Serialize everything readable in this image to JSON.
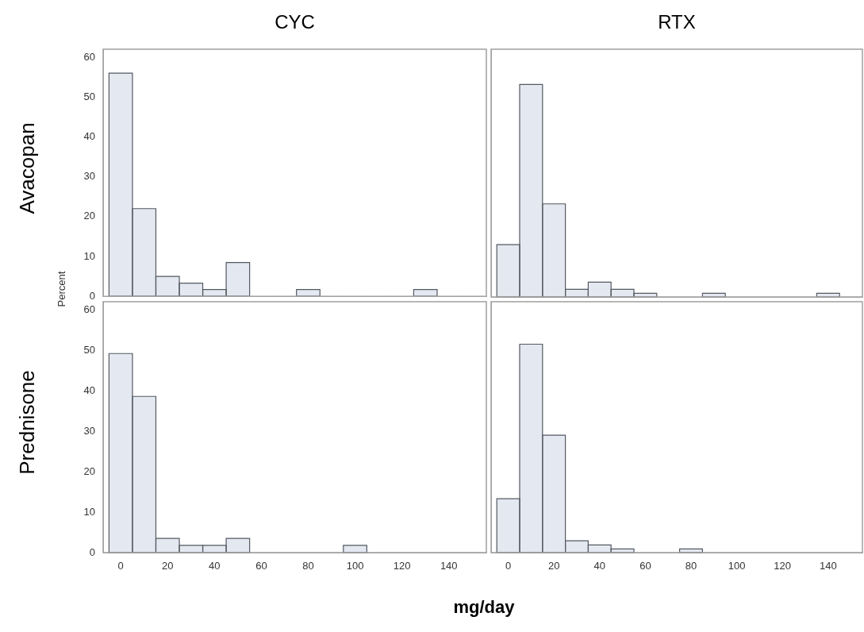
{
  "chart_data": [
    {
      "type": "histogram",
      "title": "CYC",
      "ylabel": "Avacopan",
      "annotations": [
        "Percent"
      ],
      "bins": [
        -5,
        5,
        15,
        25,
        35,
        45,
        55,
        65,
        75,
        85,
        95,
        105,
        115,
        125,
        135,
        145,
        155
      ],
      "values": [
        56,
        22,
        5,
        3.3,
        1.7,
        8.5,
        0,
        0,
        1.7,
        0,
        0,
        0,
        0,
        1.7,
        0,
        0
      ],
      "color": "#e3e8f1",
      "xlim": [
        -7.5,
        156
      ],
      "xticks": [
        0,
        20,
        40,
        60,
        80,
        100,
        120,
        140
      ],
      "ylim": [
        0,
        62
      ],
      "yticks": [
        0,
        10,
        20,
        30,
        40,
        50,
        60
      ],
      "tick_labels": "y"
    },
    {
      "type": "histogram",
      "title": "RTX",
      "bins": [
        -5,
        5,
        15,
        25,
        35,
        45,
        55,
        65,
        75,
        85,
        95,
        105,
        115,
        125,
        135,
        145,
        155
      ],
      "values": [
        13.1,
        53.2,
        23.3,
        1.9,
        3.7,
        1.9,
        0.9,
        0,
        0,
        0.9,
        0,
        0,
        0,
        0,
        0.9,
        0
      ],
      "color": "#e3e8f1",
      "xlim": [
        -7.5,
        155
      ],
      "xticks": [
        0,
        20,
        40,
        60,
        80,
        100,
        120,
        140
      ],
      "ylim": [
        0,
        62
      ],
      "yticks": [
        0,
        10,
        20,
        30,
        40,
        50,
        60
      ],
      "tick_labels": false
    },
    {
      "type": "histogram",
      "ylabel": "Prednisone",
      "xlabel": "mg/day",
      "bins": [
        -5,
        5,
        15,
        25,
        35,
        45,
        55,
        65,
        75,
        85,
        95,
        105,
        115,
        125,
        135,
        145,
        155
      ],
      "values": [
        49.2,
        38.6,
        3.5,
        1.8,
        1.8,
        3.5,
        0,
        0,
        0,
        0,
        1.8,
        0,
        0,
        0,
        0,
        0
      ],
      "color": "#e3e8f1",
      "xlim": [
        -7.5,
        156
      ],
      "xticks": [
        0,
        20,
        40,
        60,
        80,
        100,
        120,
        140
      ],
      "ylim": [
        0,
        62
      ],
      "yticks": [
        0,
        10,
        20,
        30,
        40,
        50,
        60
      ]
    },
    {
      "type": "histogram",
      "bins": [
        -5,
        5,
        15,
        25,
        35,
        45,
        55,
        65,
        75,
        85,
        95,
        105,
        115,
        125,
        135,
        145,
        155
      ],
      "values": [
        13.3,
        51.5,
        29,
        2.9,
        1.9,
        0.9,
        0,
        0,
        0.9,
        0,
        0,
        0,
        0,
        0,
        0,
        0
      ],
      "color": "#e3e8f1",
      "xlim": [
        -7.5,
        155
      ],
      "xticks": [
        0,
        20,
        40,
        60,
        80,
        100,
        120,
        140
      ],
      "ylim": [
        0,
        62
      ],
      "yticks": [
        0,
        10,
        20,
        30,
        40,
        50,
        60
      ],
      "tick_labels": "x"
    }
  ]
}
